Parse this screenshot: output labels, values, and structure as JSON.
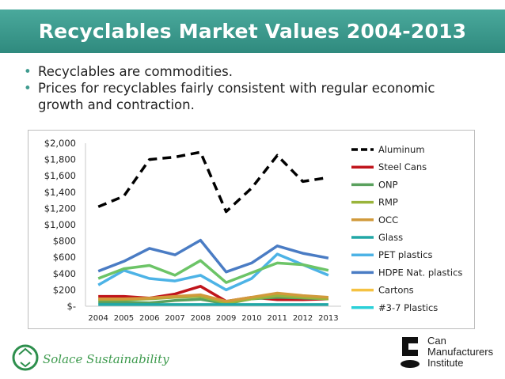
{
  "slide": {
    "title": "Recyclables Market Values 2004-2013",
    "bullets": [
      "Recyclables are commodities.",
      "Prices for recyclables fairly consistent with regular economic growth and contraction."
    ]
  },
  "logos": {
    "left_text": "Solace Sustainability",
    "right_lines": [
      "Can",
      "Manufacturers",
      "Institute"
    ]
  },
  "colors": {
    "title_bar": "#3f9b8f",
    "bullet": "#3f9b8f"
  },
  "chart_data": {
    "type": "line",
    "title": "",
    "xlabel": "",
    "ylabel": "",
    "categories": [
      "2004",
      "2005",
      "2006",
      "2007",
      "2008",
      "2009",
      "2010",
      "2011",
      "2012",
      "2013"
    ],
    "y_tick_labels": [
      "$-",
      "$200",
      "$400",
      "$600",
      "$800",
      "$1,000",
      "$1,200",
      "$1,400",
      "$1,600",
      "$1,800",
      "$2,000"
    ],
    "ylim": [
      0,
      2000
    ],
    "legend_position": "right",
    "series": [
      {
        "name": "Aluminum",
        "color": "#000000",
        "dashed": true,
        "width": 3.5,
        "values": [
          1220,
          1350,
          1800,
          1830,
          1890,
          1160,
          1450,
          1850,
          1530,
          1580
        ]
      },
      {
        "name": "Steel Cans",
        "color": "#c0141b",
        "dashed": false,
        "width": 3.5,
        "values": [
          120,
          120,
          100,
          150,
          245,
          60,
          110,
          80,
          80,
          90
        ]
      },
      {
        "name": "ONP",
        "color": "#5aa15e",
        "dashed": false,
        "width": 3.5,
        "values": [
          50,
          50,
          40,
          70,
          85,
          30,
          90,
          110,
          100,
          90
        ]
      },
      {
        "name": "RMP",
        "color": "#9ab43b",
        "dashed": false,
        "width": 3.5,
        "values": [
          80,
          80,
          90,
          110,
          120,
          40,
          90,
          130,
          110,
          90
        ]
      },
      {
        "name": "OCC",
        "color": "#d19a3b",
        "dashed": false,
        "width": 3.5,
        "values": [
          90,
          90,
          100,
          120,
          140,
          60,
          110,
          160,
          130,
          110
        ]
      },
      {
        "name": "Glass",
        "color": "#21a7a6",
        "dashed": false,
        "width": 3.5,
        "values": [
          20,
          20,
          20,
          20,
          20,
          20,
          20,
          20,
          20,
          20
        ]
      },
      {
        "name": "PET plastics",
        "color": "#4db3e6",
        "dashed": false,
        "width": 3.5,
        "values": [
          260,
          440,
          340,
          310,
          380,
          200,
          340,
          640,
          510,
          380
        ]
      },
      {
        "name": "HDPE Nat. plastics",
        "color": "#4a7cc4",
        "dashed": false,
        "width": 3.5,
        "values": [
          430,
          550,
          710,
          630,
          810,
          420,
          530,
          740,
          650,
          590
        ]
      },
      {
        "name": "Cartons",
        "color": "#f5c242",
        "dashed": false,
        "width": 3.5,
        "values": [
          null,
          null,
          null,
          null,
          null,
          null,
          null,
          null,
          null,
          null
        ]
      },
      {
        "name": "#3-7 Plastics",
        "color": "#2bd0d8",
        "dashed": false,
        "width": 3.5,
        "values": [
          null,
          null,
          null,
          null,
          null,
          null,
          null,
          null,
          null,
          null
        ]
      },
      {
        "name": "_green_extra",
        "hidden_in_legend": true,
        "color": "#6cc467",
        "dashed": false,
        "width": 3.5,
        "values": [
          340,
          460,
          500,
          380,
          560,
          290,
          410,
          530,
          510,
          440
        ]
      }
    ]
  }
}
